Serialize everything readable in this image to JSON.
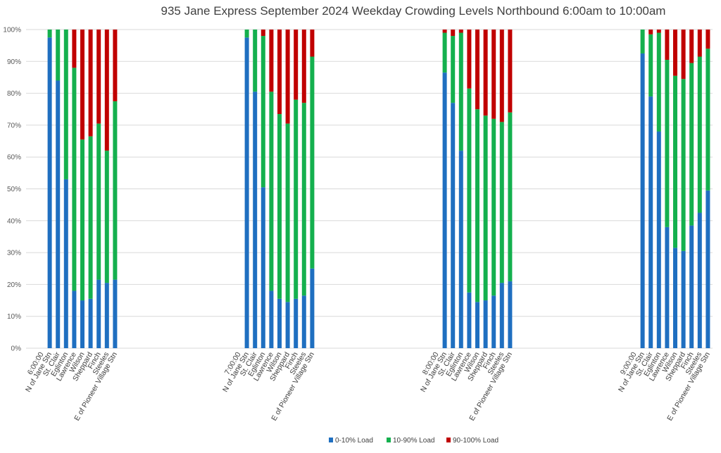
{
  "chart_data": {
    "type": "bar",
    "stacked": "percent",
    "title": "935 Jane Express September 2024  Weekday Crowding Levels Northbound 6:00am to 10:00am",
    "ylim": [
      0,
      100
    ],
    "y_ticks": [
      "0%",
      "10%",
      "20%",
      "30%",
      "40%",
      "50%",
      "60%",
      "70%",
      "80%",
      "90%",
      "100%"
    ],
    "grid": true,
    "legend_position": "bottom",
    "groups": [
      {
        "labels": [
          "6:00:00",
          "N of Jane Stn",
          "St. Clair",
          "Eglinton",
          "Lawrence",
          "Wilson",
          "Sheppard",
          "Finch",
          "Steeles",
          "E of Pioneer Village Stn"
        ],
        "series": [
          {
            "name": "0-10% Load",
            "values": [
              null,
              97.5,
              84,
              53,
              18,
              15,
              15.5,
              21.5,
              20.5,
              21.5
            ]
          },
          {
            "name": "10-90% Load",
            "values": [
              null,
              2.5,
              16,
              47,
              70,
              50.5,
              51,
              49,
              41.5,
              56
            ]
          },
          {
            "name": "90-100% Load",
            "values": [
              null,
              0,
              0,
              0,
              12,
              34.5,
              33.5,
              29.5,
              38,
              22.5
            ]
          }
        ]
      },
      {
        "labels": [
          "7:00:00",
          "N of Jane Stn",
          "St. Clair",
          "Eglinton",
          "Lawrence",
          "Wilson",
          "Sheppard",
          "Finch",
          "Steeles",
          "E of Pioneer Village Stn"
        ],
        "series": [
          {
            "name": "0-10% Load",
            "values": [
              null,
              97.5,
              80.5,
              50.5,
              18,
              15.5,
              14.5,
              15.5,
              16.5,
              25
            ]
          },
          {
            "name": "10-90% Load",
            "values": [
              null,
              2.5,
              19.5,
              47.5,
              62.5,
              58,
              56,
              62.5,
              60.5,
              66.5
            ]
          },
          {
            "name": "90-100% Load",
            "values": [
              null,
              0,
              0,
              2,
              19.5,
              26.5,
              29.5,
              22,
              23,
              8.5
            ]
          }
        ]
      },
      {
        "labels": [
          "8:00:00",
          "N of Jane Stn",
          "St. Clair",
          "Eglinton",
          "Lawrence",
          "Wilson",
          "Sheppard",
          "Finch",
          "Steeles",
          "E of Pioneer Village Stn"
        ],
        "series": [
          {
            "name": "0-10% Load",
            "values": [
              null,
              86.5,
              77,
              62,
              17.5,
              14.5,
              15,
              16.5,
              20.5,
              21
            ]
          },
          {
            "name": "10-90% Load",
            "values": [
              null,
              12.5,
              21,
              37,
              64,
              60.5,
              58,
              55.5,
              50.5,
              53
            ]
          },
          {
            "name": "90-100% Load",
            "values": [
              null,
              1,
              2,
              1,
              18.5,
              25,
              27,
              28,
              29,
              26
            ]
          }
        ]
      },
      {
        "labels": [
          "9:00:00",
          "N of Jane Stn",
          "St. Clair",
          "Eglinton",
          "Lawrence",
          "Wilson",
          "Sheppard",
          "Finch",
          "Steeles",
          "E of Pioneer Village Stn"
        ],
        "series": [
          {
            "name": "0-10% Load",
            "values": [
              null,
              92.5,
              79,
              68,
              38,
              31.5,
              30.5,
              38.5,
              42.5,
              49.5
            ]
          },
          {
            "name": "10-90% Load",
            "values": [
              null,
              7.5,
              19.5,
              31,
              52.5,
              54,
              54,
              51,
              49,
              44.5
            ]
          },
          {
            "name": "90-100% Load",
            "values": [
              null,
              0,
              1.5,
              1,
              9.5,
              14.5,
              15.5,
              10.5,
              8.5,
              6
            ]
          }
        ]
      }
    ],
    "legend": [
      {
        "name": "0-10% Load",
        "color": "#1f6fc0"
      },
      {
        "name": "10-90% Load",
        "color": "#14b04e"
      },
      {
        "name": "90-100% Load",
        "color": "#c00000"
      }
    ]
  }
}
